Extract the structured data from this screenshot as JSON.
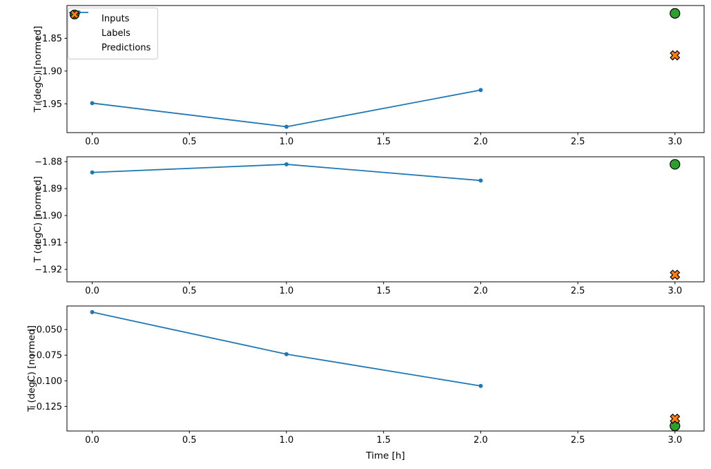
{
  "figure": {
    "xlabel": "Time [h]",
    "background": "#ffffff"
  },
  "legend": {
    "items": [
      {
        "label": "Inputs",
        "marker": "line-dot",
        "color": "#1f77b4"
      },
      {
        "label": "Labels",
        "marker": "circle",
        "color": "#2ca02c"
      },
      {
        "label": "Predictions",
        "marker": "x",
        "color": "#ff7f0e"
      }
    ]
  },
  "chart_data": [
    {
      "type": "line",
      "title": "",
      "ylabel": "T (degC) [normed]",
      "xlabel": "",
      "x": [
        0.0,
        1.0,
        2.0
      ],
      "series": [
        {
          "name": "Inputs",
          "color": "#1f77b4",
          "values": [
            -1.949,
            -1.985,
            -1.929
          ]
        }
      ],
      "markers": [
        {
          "name": "Labels",
          "shape": "circle",
          "color": "#2ca02c",
          "x": 3.0,
          "y": -1.812
        },
        {
          "name": "Predictions",
          "shape": "x",
          "color": "#ff7f0e",
          "x": 3.0,
          "y": -1.876
        }
      ],
      "xlim": [
        -0.13,
        3.15
      ],
      "ylim": [
        -1.994,
        -1.8
      ],
      "xticks": {
        "values": [
          0,
          0.5,
          1,
          1.5,
          2,
          2.5,
          3
        ],
        "labels": [
          "0.0",
          "0.5",
          "1.0",
          "1.5",
          "2.0",
          "2.5",
          "3.0"
        ]
      },
      "yticks": {
        "values": [
          -1.85,
          -1.9,
          -1.95
        ],
        "labels": [
          "−1.85",
          "−1.90",
          "−1.95"
        ]
      },
      "grid": false,
      "legend_position": "upper left"
    },
    {
      "type": "line",
      "title": "",
      "ylabel": "T (degC) [normed]",
      "xlabel": "",
      "x": [
        0.0,
        1.0,
        2.0
      ],
      "series": [
        {
          "name": "Inputs",
          "color": "#1f77b4",
          "values": [
            -1.884,
            -1.881,
            -1.887
          ]
        }
      ],
      "markers": [
        {
          "name": "Labels",
          "shape": "circle",
          "color": "#2ca02c",
          "x": 3.0,
          "y": -1.881
        },
        {
          "name": "Predictions",
          "shape": "x",
          "color": "#ff7f0e",
          "x": 3.0,
          "y": -1.922
        }
      ],
      "xlim": [
        -0.13,
        3.15
      ],
      "ylim": [
        -1.9246,
        -1.8782
      ],
      "xticks": {
        "values": [
          0,
          0.5,
          1,
          1.5,
          2,
          2.5,
          3
        ],
        "labels": [
          "0.0",
          "0.5",
          "1.0",
          "1.5",
          "2.0",
          "2.5",
          "3.0"
        ]
      },
      "yticks": {
        "values": [
          -1.88,
          -1.89,
          -1.9,
          -1.91,
          -1.92
        ],
        "labels": [
          "−1.88",
          "−1.89",
          "−1.90",
          "−1.91",
          "−1.92"
        ]
      },
      "grid": false
    },
    {
      "type": "line",
      "title": "",
      "ylabel": "T (degC) [normed]",
      "xlabel": "Time [h]",
      "x": [
        0.0,
        1.0,
        2.0
      ],
      "series": [
        {
          "name": "Inputs",
          "color": "#1f77b4",
          "values": [
            -0.033,
            -0.074,
            -0.105
          ]
        }
      ],
      "markers": [
        {
          "name": "Labels",
          "shape": "circle",
          "color": "#2ca02c",
          "x": 3.0,
          "y": -0.144
        },
        {
          "name": "Predictions",
          "shape": "x",
          "color": "#ff7f0e",
          "x": 3.0,
          "y": -0.137
        }
      ],
      "xlim": [
        -0.13,
        3.15
      ],
      "ylim": [
        -0.149,
        -0.027
      ],
      "xticks": {
        "values": [
          0,
          0.5,
          1,
          1.5,
          2,
          2.5,
          3
        ],
        "labels": [
          "0.0",
          "0.5",
          "1.0",
          "1.5",
          "2.0",
          "2.5",
          "3.0"
        ]
      },
      "yticks": {
        "values": [
          -0.05,
          -0.075,
          -0.1,
          -0.125
        ],
        "labels": [
          "−0.050",
          "−0.075",
          "−0.100",
          "−0.125"
        ]
      },
      "grid": false
    }
  ]
}
